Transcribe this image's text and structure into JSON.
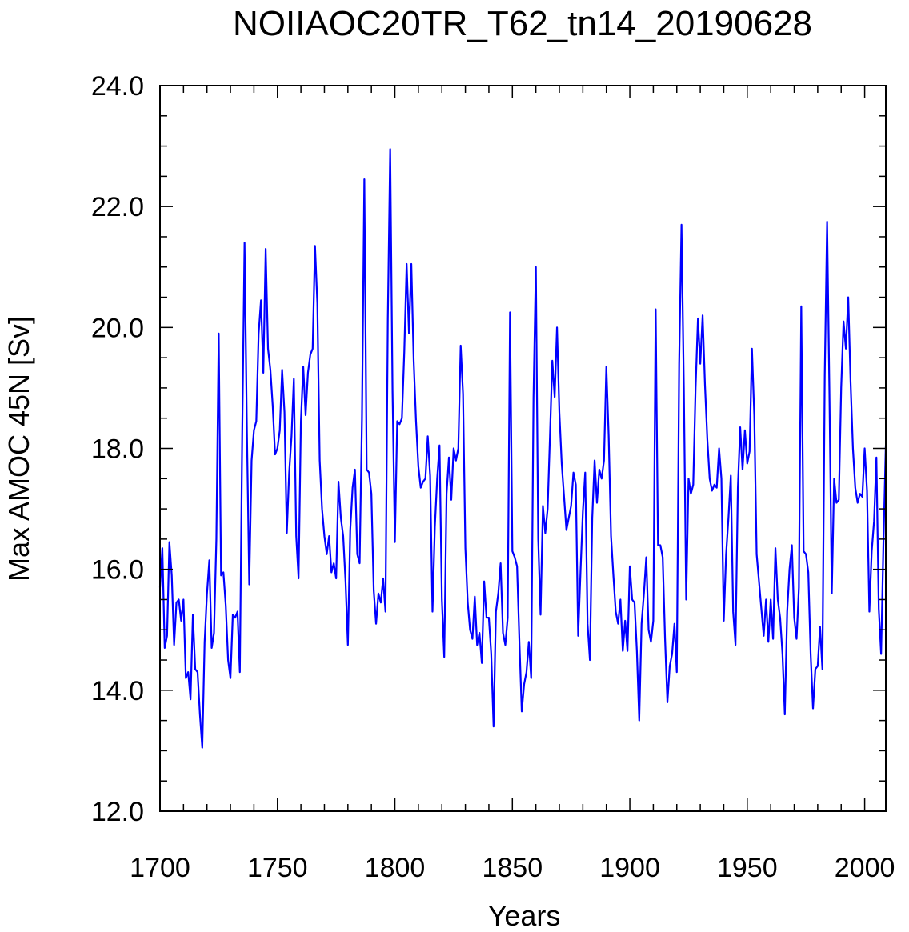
{
  "chart_data": {
    "type": "line",
    "title": "NOIIAOC20TR_T62_tn14_20190628",
    "xlabel": "Years",
    "ylabel": "Max AMOC 45N [Sv]",
    "xlim": [
      1700,
      2009
    ],
    "ylim": [
      12.0,
      24.0
    ],
    "xticks": [
      1700,
      1750,
      1800,
      1850,
      1900,
      1950,
      2000
    ],
    "yticks": [
      "12.0",
      "14.0",
      "16.0",
      "18.0",
      "20.0",
      "22.0",
      "24.0"
    ],
    "line_color": "#0000ff",
    "grid": false,
    "series": [
      {
        "x": [
          1700,
          1701,
          1702,
          1703,
          1704,
          1705,
          1706,
          1707,
          1708,
          1709,
          1710,
          1711,
          1712,
          1713,
          1714,
          1715,
          1716,
          1717,
          1718,
          1719,
          1720,
          1721,
          1722,
          1723,
          1724,
          1725,
          1726,
          1727,
          1728,
          1729,
          1730,
          1731,
          1732,
          1733,
          1734,
          1735,
          1736,
          1737,
          1738,
          1739,
          1740,
          1741,
          1742,
          1743,
          1744,
          1745,
          1746,
          1747,
          1748,
          1749,
          1750,
          1751,
          1752,
          1753,
          1754,
          1755,
          1756,
          1757,
          1758,
          1759,
          1760,
          1761,
          1762,
          1763,
          1764,
          1765,
          1766,
          1767,
          1768,
          1769,
          1770,
          1771,
          1772,
          1773,
          1774,
          1775,
          1776,
          1777,
          1778,
          1779,
          1780,
          1781,
          1782,
          1783,
          1784,
          1785,
          1786,
          1787,
          1788,
          1789,
          1790,
          1791,
          1792,
          1793,
          1794,
          1795,
          1796,
          1797,
          1798,
          1799,
          1800,
          1801,
          1802,
          1803,
          1804,
          1805,
          1806,
          1807,
          1808,
          1809,
          1810,
          1811,
          1812,
          1813,
          1814,
          1815,
          1816,
          1817,
          1818,
          1819,
          1820,
          1821,
          1822,
          1823,
          1824,
          1825,
          1826,
          1827,
          1828,
          1829,
          1830,
          1831,
          1832,
          1833,
          1834,
          1835,
          1836,
          1837,
          1838,
          1839,
          1840,
          1841,
          1842,
          1843,
          1844,
          1845,
          1846,
          1847,
          1848,
          1849,
          1850,
          1851,
          1852,
          1853,
          1854,
          1855,
          1856,
          1857,
          1858,
          1859,
          1860,
          1861,
          1862,
          1863,
          1864,
          1865,
          1866,
          1867,
          1868,
          1869,
          1870,
          1871,
          1872,
          1873,
          1874,
          1875,
          1876,
          1877,
          1878,
          1879,
          1880,
          1881,
          1882,
          1883,
          1884,
          1885,
          1886,
          1887,
          1888,
          1889,
          1890,
          1891,
          1892,
          1893,
          1894,
          1895,
          1896,
          1897,
          1898,
          1899,
          1900,
          1901,
          1902,
          1903,
          1904,
          1905,
          1906,
          1907,
          1908,
          1909,
          1910,
          1911,
          1912,
          1913,
          1914,
          1915,
          1916,
          1917,
          1918,
          1919,
          1920,
          1921,
          1922,
          1923,
          1924,
          1925,
          1926,
          1927,
          1928,
          1929,
          1930,
          1931,
          1932,
          1933,
          1934,
          1935,
          1936,
          1937,
          1938,
          1939,
          1940,
          1941,
          1942,
          1943,
          1944,
          1945,
          1946,
          1947,
          1948,
          1949,
          1950,
          1951,
          1952,
          1953,
          1954,
          1955,
          1956,
          1957,
          1958,
          1959,
          1960,
          1961,
          1962,
          1963,
          1964,
          1965,
          1966,
          1967,
          1968,
          1969,
          1970,
          1971,
          1972,
          1973,
          1974,
          1975,
          1976,
          1977,
          1978,
          1979,
          1980,
          1981,
          1982,
          1983,
          1984,
          1985,
          1986,
          1987,
          1988,
          1989,
          1990,
          1991,
          1992,
          1993,
          1994,
          1995,
          1996,
          1997,
          1998,
          1999,
          2000,
          2001,
          2002,
          2003,
          2004,
          2005,
          2006,
          2007,
          2008,
          2009
        ],
        "values": [
          15.7,
          16.35,
          14.7,
          14.9,
          16.45,
          15.9,
          14.75,
          15.45,
          15.5,
          15.15,
          15.5,
          14.2,
          14.3,
          13.85,
          15.25,
          14.35,
          14.3,
          13.6,
          13.05,
          14.8,
          15.6,
          16.15,
          14.7,
          14.95,
          16.5,
          19.9,
          15.9,
          15.95,
          15.4,
          14.5,
          14.2,
          15.25,
          15.2,
          15.3,
          14.3,
          18.2,
          21.4,
          18.3,
          15.75,
          17.8,
          18.3,
          18.45,
          19.9,
          20.45,
          19.25,
          21.3,
          19.65,
          19.3,
          18.7,
          17.9,
          18.0,
          18.3,
          19.3,
          18.6,
          16.6,
          17.6,
          18.2,
          19.15,
          16.55,
          15.85,
          18.45,
          19.35,
          18.55,
          19.25,
          19.55,
          19.65,
          21.35,
          20.4,
          17.8,
          17.0,
          16.55,
          16.25,
          16.55,
          15.95,
          16.1,
          15.85,
          17.45,
          16.85,
          16.55,
          15.8,
          14.75,
          16.65,
          17.35,
          17.65,
          16.25,
          16.1,
          18.5,
          22.45,
          17.65,
          17.6,
          17.25,
          15.65,
          15.1,
          15.6,
          15.45,
          15.85,
          15.3,
          20.15,
          22.95,
          18.95,
          16.45,
          18.45,
          18.4,
          18.5,
          19.6,
          21.05,
          19.9,
          21.05,
          19.45,
          18.45,
          17.7,
          17.35,
          17.45,
          17.5,
          18.2,
          17.55,
          15.3,
          16.7,
          17.5,
          18.05,
          15.5,
          14.55,
          17.25,
          17.85,
          17.15,
          18.0,
          17.8,
          18.0,
          19.7,
          18.9,
          16.35,
          15.45,
          15.0,
          14.85,
          15.55,
          14.75,
          14.95,
          14.45,
          15.8,
          15.2,
          15.2,
          14.6,
          13.4,
          15.3,
          15.6,
          16.1,
          14.95,
          14.75,
          15.2,
          20.25,
          16.3,
          16.2,
          16.05,
          14.8,
          13.65,
          14.1,
          14.3,
          14.8,
          14.2,
          18.85,
          21.0,
          16.5,
          15.25,
          17.05,
          16.6,
          17.0,
          18.2,
          19.45,
          18.85,
          20.0,
          18.6,
          17.75,
          17.2,
          16.65,
          16.85,
          17.05,
          17.6,
          17.4,
          14.9,
          15.95,
          16.95,
          17.6,
          15.1,
          14.5,
          16.85,
          17.8,
          17.1,
          17.65,
          17.5,
          17.8,
          19.35,
          18.2,
          16.55,
          15.9,
          15.3,
          15.1,
          15.5,
          14.65,
          15.15,
          14.65,
          16.05,
          15.5,
          15.45,
          14.65,
          13.5,
          15.1,
          15.6,
          16.2,
          15.0,
          14.8,
          15.15,
          20.3,
          16.4,
          16.4,
          16.2,
          14.85,
          13.8,
          14.4,
          14.6,
          15.1,
          14.3,
          19.4,
          21.7,
          19.0,
          15.5,
          17.5,
          17.25,
          17.4,
          19.0,
          20.15,
          19.4,
          20.2,
          19.05,
          18.15,
          17.5,
          17.3,
          17.4,
          17.35,
          18.0,
          17.5,
          15.15,
          16.25,
          16.85,
          17.55,
          15.3,
          14.75,
          17.35,
          18.35,
          17.65,
          18.3,
          17.75,
          17.95,
          19.65,
          18.55,
          16.25,
          15.8,
          15.35,
          14.9,
          15.5,
          14.8,
          15.5,
          14.85,
          16.35,
          15.5,
          15.2,
          14.6,
          13.6,
          15.3,
          16.0,
          16.4,
          15.2,
          14.85,
          15.7,
          20.35,
          16.3,
          16.25,
          15.95,
          14.6,
          13.7,
          14.35,
          14.4,
          15.05,
          14.35,
          19.2,
          21.75,
          18.9,
          15.6,
          17.5,
          17.1,
          17.15,
          19.0,
          20.1,
          19.65,
          20.5,
          19.1,
          18.0,
          17.35,
          17.1,
          17.25,
          17.2,
          18.0,
          17.3,
          15.3,
          16.3,
          16.8,
          17.85,
          15.35,
          14.6,
          16.45,
          18.05
        ]
      }
    ]
  }
}
